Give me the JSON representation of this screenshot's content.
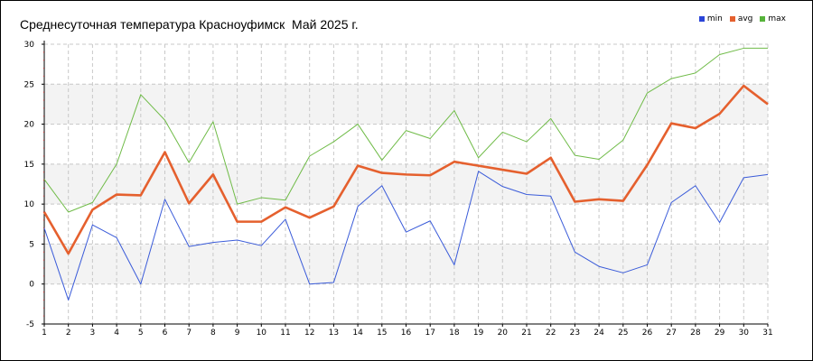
{
  "chart_data": {
    "type": "line",
    "title": "Среднесуточная температура Красноуфимск  Май 2025 г.",
    "xlabel": "",
    "ylabel": "",
    "x": [
      1,
      2,
      3,
      4,
      5,
      6,
      7,
      8,
      9,
      10,
      11,
      12,
      13,
      14,
      15,
      16,
      17,
      18,
      19,
      20,
      21,
      22,
      23,
      24,
      25,
      26,
      27,
      28,
      29,
      30,
      31
    ],
    "ylim": [
      -5,
      30
    ],
    "yticks": [
      -5,
      0,
      5,
      10,
      15,
      20,
      25,
      30
    ],
    "grid": true,
    "legend_position": "top-right",
    "series": [
      {
        "name": "min",
        "color": "#3a5bd9",
        "values": [
          7.0,
          -2.0,
          7.4,
          5.8,
          0.0,
          10.6,
          4.7,
          5.2,
          5.5,
          4.8,
          8.1,
          0.0,
          0.2,
          9.7,
          12.3,
          6.5,
          7.9,
          2.4,
          14.1,
          12.2,
          11.2,
          11.0,
          4.0,
          2.2,
          1.4,
          2.4,
          10.2,
          12.3,
          7.7,
          13.3,
          13.7
        ]
      },
      {
        "name": "avg",
        "color": "#e5602e",
        "values": [
          9.0,
          3.8,
          9.3,
          11.2,
          11.1,
          16.5,
          10.1,
          13.7,
          7.8,
          7.8,
          9.6,
          8.3,
          9.7,
          14.8,
          13.9,
          13.7,
          13.6,
          15.3,
          14.8,
          14.3,
          13.8,
          15.8,
          10.3,
          10.6,
          10.4,
          14.9,
          20.1,
          19.5,
          21.3,
          24.8,
          22.5
        ]
      },
      {
        "name": "max",
        "color": "#6fbb47",
        "values": [
          13.1,
          9.0,
          10.2,
          15.0,
          23.7,
          20.5,
          15.2,
          20.3,
          10.0,
          10.8,
          10.5,
          16.0,
          17.8,
          20.0,
          15.5,
          19.2,
          18.2,
          21.7,
          15.8,
          19.0,
          17.8,
          20.7,
          16.1,
          15.6,
          18.0,
          23.9,
          25.7,
          26.4,
          28.7,
          29.5,
          29.5
        ]
      }
    ]
  }
}
